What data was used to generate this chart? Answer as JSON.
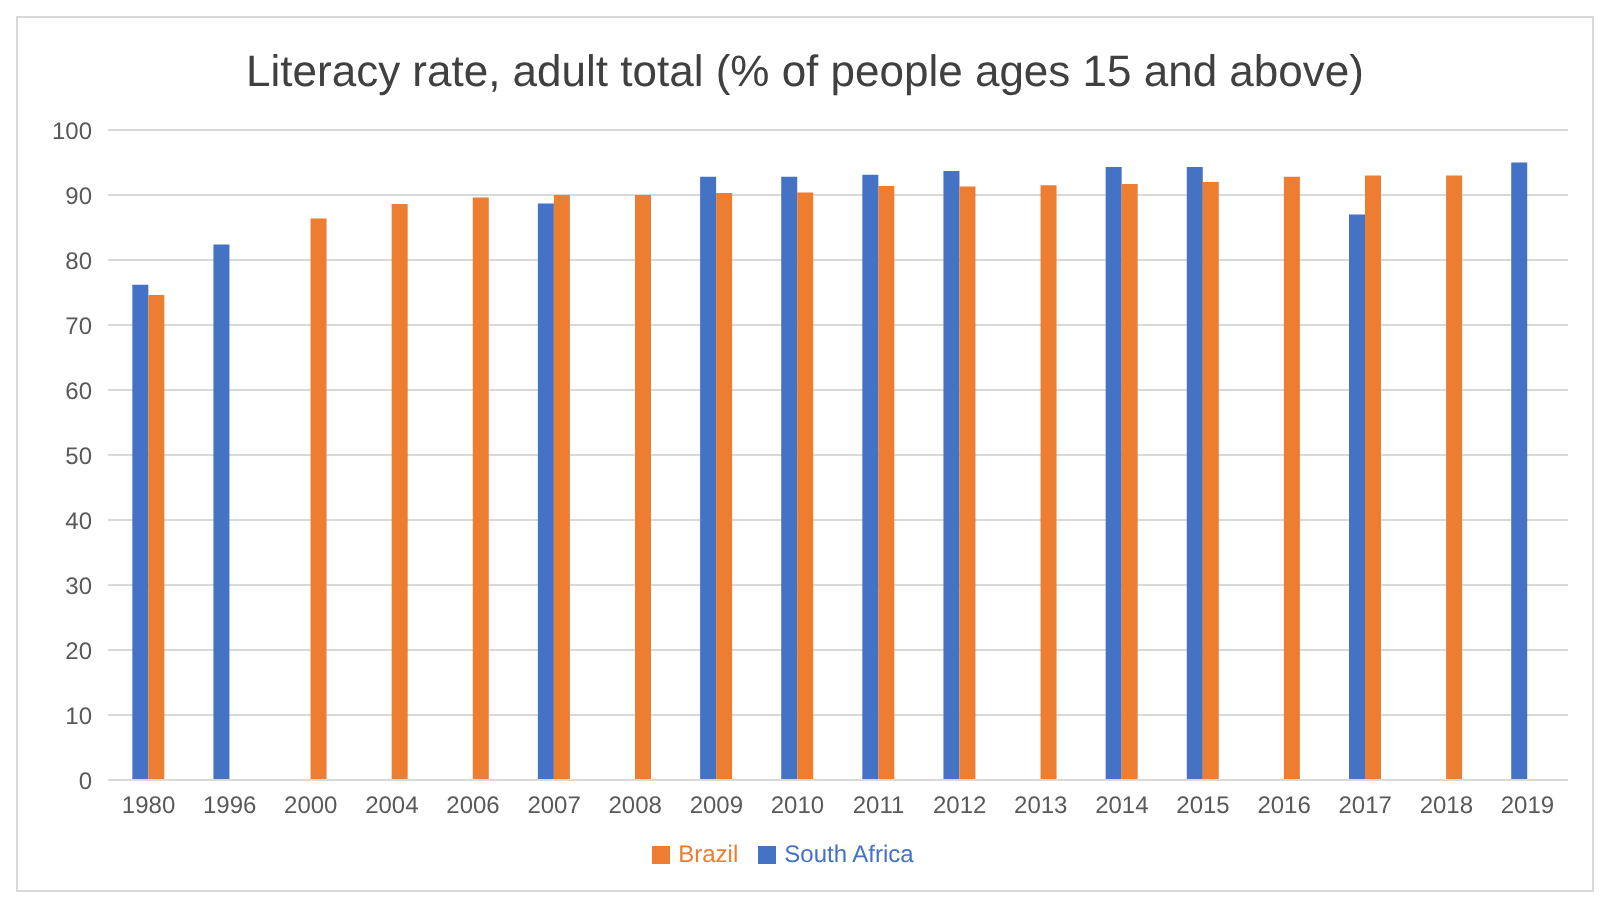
{
  "chart_data": {
    "type": "bar",
    "title": "Literacy rate, adult total (% of people ages 15 and above)",
    "categories": [
      "1980",
      "1996",
      "2000",
      "2004",
      "2006",
      "2007",
      "2008",
      "2009",
      "2010",
      "2011",
      "2012",
      "2013",
      "2014",
      "2015",
      "2016",
      "2017",
      "2018",
      "2019"
    ],
    "series": [
      {
        "name": "South Africa",
        "color": "#4472c4",
        "values": [
          76.2,
          82.4,
          null,
          null,
          null,
          88.7,
          null,
          92.8,
          92.8,
          93.1,
          93.7,
          null,
          94.3,
          94.3,
          null,
          87.0,
          null,
          95.0
        ]
      },
      {
        "name": "Brazil",
        "color": "#ed7d31",
        "values": [
          74.6,
          null,
          86.4,
          88.6,
          89.6,
          90.0,
          90.0,
          90.3,
          90.4,
          91.4,
          91.3,
          91.5,
          91.7,
          92.0,
          92.8,
          93.0,
          93.0,
          null
        ]
      }
    ],
    "ylim": [
      0,
      100
    ],
    "yticks": [
      0,
      10,
      20,
      30,
      40,
      50,
      60,
      70,
      80,
      90,
      100
    ],
    "grid": "y",
    "legend": "bottom"
  }
}
